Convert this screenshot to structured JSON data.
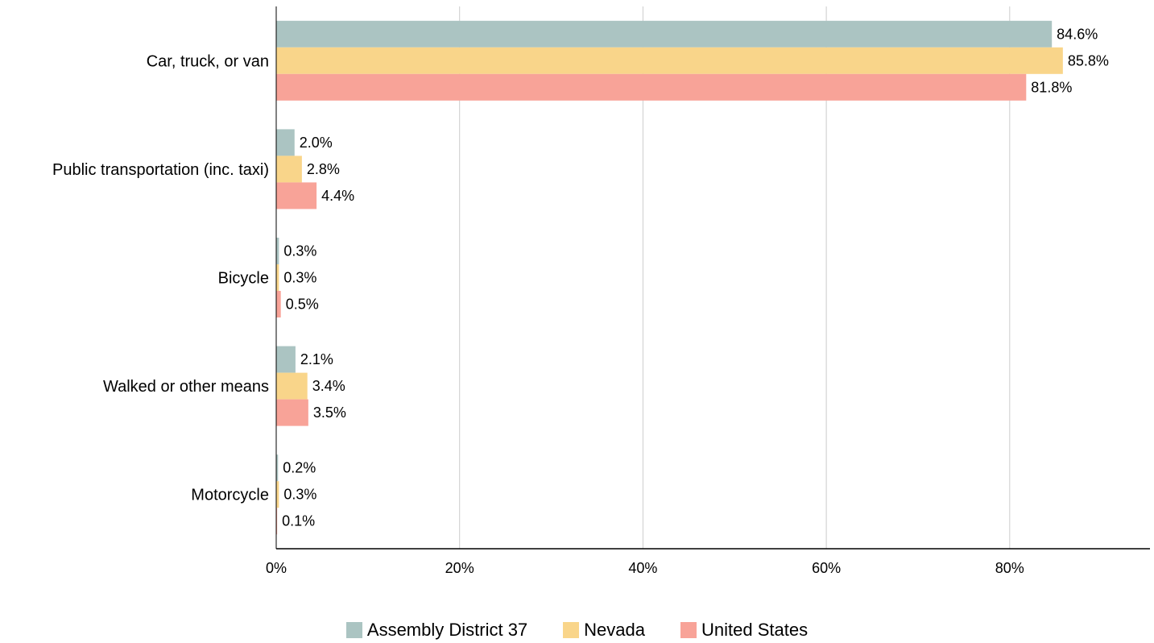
{
  "chart_data": {
    "type": "bar",
    "orientation": "horizontal",
    "categories": [
      "Car, truck, or van",
      "Public transportation (inc. taxi)",
      "Bicycle",
      "Walked or other means",
      "Motorcycle"
    ],
    "series": [
      {
        "name": "Assembly District 37",
        "color": "#abc4c2",
        "values": [
          84.6,
          2.0,
          0.3,
          2.1,
          0.2
        ],
        "labels": [
          "84.6%",
          "2.0%",
          "0.3%",
          "2.1%",
          "0.2%"
        ]
      },
      {
        "name": "Nevada",
        "color": "#f9d58a",
        "values": [
          85.8,
          2.8,
          0.3,
          3.4,
          0.3
        ],
        "labels": [
          "85.8%",
          "2.8%",
          "0.3%",
          "3.4%",
          "0.3%"
        ]
      },
      {
        "name": "United States",
        "color": "#f8a398",
        "values": [
          81.8,
          4.4,
          0.5,
          3.5,
          0.1
        ],
        "labels": [
          "81.8%",
          "4.4%",
          "0.5%",
          "3.5%",
          "0.1%"
        ]
      }
    ],
    "xticks": [
      0,
      20,
      40,
      60,
      80
    ],
    "xtick_labels": [
      "0%",
      "20%",
      "40%",
      "60%",
      "80%"
    ],
    "xlim": [
      0,
      95.3
    ],
    "grid": true,
    "legend_position": "bottom",
    "gridline_color": "#cccccc",
    "axis_color": "#000000"
  }
}
